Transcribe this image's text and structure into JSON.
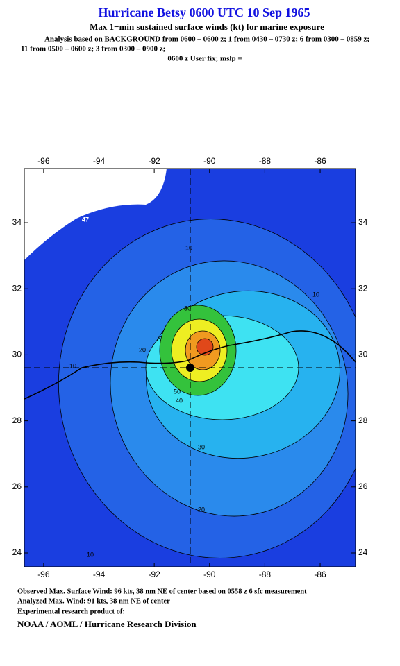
{
  "chart_data": {
    "type": "contour",
    "title": "Hurricane Betsy 0600 UTC 10 Sep 1965",
    "subtitle": "Max 1−min sustained surface winds (kt) for marine exposure",
    "analysis": [
      "Analysis based on  BACKGROUND from 0600 – 0600 z;  1 from 0430 – 0730 z;  6 from 0300 – 0859 z;",
      "11 from 0500 – 0600 z;  3 from 0300 – 0900 z;",
      "0600 z User fix; mslp ="
    ],
    "xlim": [
      -96.7,
      -84.72
    ],
    "ylim": [
      23.58,
      35.64
    ],
    "xticks": [
      -96,
      -94,
      -92,
      -90,
      -88,
      -86
    ],
    "yticks": [
      24,
      26,
      28,
      30,
      32,
      34
    ],
    "background_color": "#1a3ee0",
    "levels": [
      10,
      20,
      30,
      40,
      50,
      64,
      80,
      90
    ],
    "level_colors": [
      "#2462e6",
      "#2a8aec",
      "#27b2ef",
      "#3ee2f2",
      "#34c23c",
      "#eeee22",
      "#f09a20",
      "#e0481a"
    ],
    "contour_labels": [
      47,
      10,
      10,
      10,
      10,
      20,
      20,
      30,
      30,
      40,
      50
    ],
    "footer": [
      "Observed Max. Surface Wind: 96 kts, 38 nm NE of center based on 0558 z 6 sfc measurement",
      "Analyzed Max. Wind: 91 kts, 38 nm NE of center",
      "Experimental research product of:",
      "NOAA / AOML / Hurricane Research Division"
    ]
  }
}
